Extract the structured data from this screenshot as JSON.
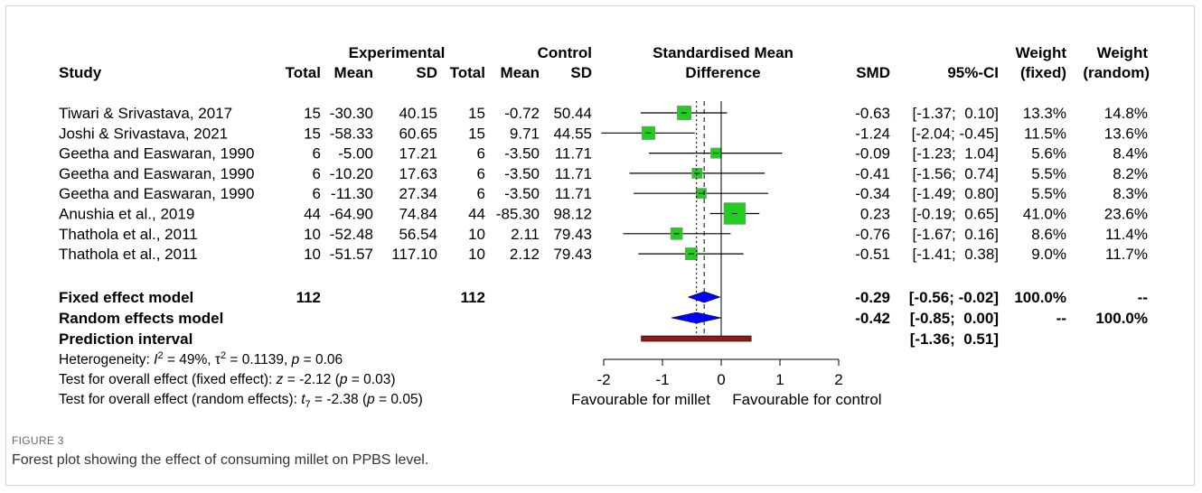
{
  "header": {
    "study": "Study",
    "exp_group": "Experimental",
    "ctrl_group": "Control",
    "total_e": "Total",
    "mean_e": "Mean",
    "sd_e": "SD",
    "total_c": "Total",
    "mean_c": "Mean",
    "sd_c": "SD",
    "smd_title1": "Standardised Mean",
    "smd_title2": "Difference",
    "smd": "SMD",
    "ci": "95%-CI",
    "wf1": "Weight",
    "wf2": "(fixed)",
    "wr1": "Weight",
    "wr2": "(random)"
  },
  "footer": {
    "fixed_label": "Fixed effect model",
    "random_label": "Random effects model",
    "pi_label": "Prediction interval",
    "total_e": "112",
    "total_c": "112",
    "fixed_smd": "-0.29",
    "fixed_ci": "[-0.56; -0.02]",
    "fixed_wf": "100.0%",
    "fixed_wr": "--",
    "random_smd": "-0.42",
    "random_ci": "[-0.85;  0.00]",
    "random_wf": "--",
    "random_wr": "100.0%",
    "pi_ci": "[-1.36;  0.51]",
    "het": [
      "Heterogeneity: ",
      "I",
      "2",
      " = 49%, τ",
      "2",
      " = 0.1139, ",
      "p",
      " = 0.06"
    ],
    "test_fixed": [
      "Test for overall effect (fixed effect): ",
      "z",
      " = -2.12 (",
      "p",
      " = 0.03)"
    ],
    "test_random": [
      "Test for overall effect (random effects): ",
      "t",
      "7",
      " = -2.38 (",
      "p",
      " = 0.05)"
    ]
  },
  "axis": {
    "ticks": [
      "-2",
      "-1",
      "0",
      "1",
      "2"
    ],
    "left_label": "Favourable for millet",
    "right_label": "Favourable for control"
  },
  "caption": {
    "label": "FIGURE 3",
    "text": "Forest plot showing the effect of consuming millet on PPBS level."
  },
  "chart_data": {
    "type": "forest",
    "xlim": [
      -2,
      2
    ],
    "x_ticks": [
      -2,
      -1,
      0,
      1,
      2
    ],
    "fixed_smd": -0.29,
    "random_smd": -0.42,
    "fixed_ci": [
      -0.56,
      -0.02
    ],
    "random_ci": [
      -0.85,
      0.0
    ],
    "prediction_interval": [
      -1.36,
      0.51
    ],
    "colors": {
      "box": "#22cc22",
      "diamond": "#0000ff",
      "pi_bar": "#8b1a1a"
    },
    "studies": [
      {
        "name": "Tiwari & Srivastava, 2017",
        "n_e": "15",
        "mean_e": "-30.30",
        "sd_e": "40.15",
        "n_c": "15",
        "mean_c": "-0.72",
        "sd_c": "50.44",
        "smd": "-0.63",
        "ci": "[-1.37;  0.10]",
        "wf": "13.3%",
        "wr": "14.8%",
        "smd_v": -0.63,
        "lo": -1.37,
        "hi": 0.1,
        "w": 13.3
      },
      {
        "name": "Joshi & Srivastava, 2021",
        "n_e": "15",
        "mean_e": "-58.33",
        "sd_e": "60.65",
        "n_c": "15",
        "mean_c": "9.71",
        "sd_c": "44.55",
        "smd": "-1.24",
        "ci": "[-2.04; -0.45]",
        "wf": "11.5%",
        "wr": "13.6%",
        "smd_v": -1.24,
        "lo": -2.04,
        "hi": -0.45,
        "w": 11.5
      },
      {
        "name": "Geetha and Easwaran, 1990",
        "n_e": "6",
        "mean_e": "-5.00",
        "sd_e": "17.21",
        "n_c": "6",
        "mean_c": "-3.50",
        "sd_c": "11.71",
        "smd": "-0.09",
        "ci": "[-1.23;  1.04]",
        "wf": "5.6%",
        "wr": "8.4%",
        "smd_v": -0.09,
        "lo": -1.23,
        "hi": 1.04,
        "w": 5.6
      },
      {
        "name": "Geetha and Easwaran, 1990",
        "n_e": "6",
        "mean_e": "-10.20",
        "sd_e": "17.63",
        "n_c": "6",
        "mean_c": "-3.50",
        "sd_c": "11.71",
        "smd": "-0.41",
        "ci": "[-1.56;  0.74]",
        "wf": "5.5%",
        "wr": "8.2%",
        "smd_v": -0.41,
        "lo": -1.56,
        "hi": 0.74,
        "w": 5.5
      },
      {
        "name": "Geetha and Easwaran, 1990",
        "n_e": "6",
        "mean_e": "-11.30",
        "sd_e": "27.34",
        "n_c": "6",
        "mean_c": "-3.50",
        "sd_c": "11.71",
        "smd": "-0.34",
        "ci": "[-1.49;  0.80]",
        "wf": "5.5%",
        "wr": "8.3%",
        "smd_v": -0.34,
        "lo": -1.49,
        "hi": 0.8,
        "w": 5.5
      },
      {
        "name": "Anushia et al., 2019",
        "n_e": "44",
        "mean_e": "-64.90",
        "sd_e": "74.84",
        "n_c": "44",
        "mean_c": "-85.30",
        "sd_c": "98.12",
        "smd": "0.23",
        "ci": "[-0.19;  0.65]",
        "wf": "41.0%",
        "wr": "23.6%",
        "smd_v": 0.23,
        "lo": -0.19,
        "hi": 0.65,
        "w": 41.0
      },
      {
        "name": "Thathola et al., 2011",
        "n_e": "10",
        "mean_e": "-52.48",
        "sd_e": "56.54",
        "n_c": "10",
        "mean_c": "2.11",
        "sd_c": "79.43",
        "smd": "-0.76",
        "ci": "[-1.67;  0.16]",
        "wf": "8.6%",
        "wr": "11.4%",
        "smd_v": -0.76,
        "lo": -1.67,
        "hi": 0.16,
        "w": 8.6
      },
      {
        "name": "Thathola et al., 2011",
        "n_e": "10",
        "mean_e": "-51.57",
        "sd_e": "117.10",
        "n_c": "10",
        "mean_c": "2.12",
        "sd_c": "79.43",
        "smd": "-0.51",
        "ci": "[-1.41;  0.38]",
        "wf": "9.0%",
        "wr": "11.7%",
        "smd_v": -0.51,
        "lo": -1.41,
        "hi": 0.38,
        "w": 9.0
      }
    ]
  }
}
